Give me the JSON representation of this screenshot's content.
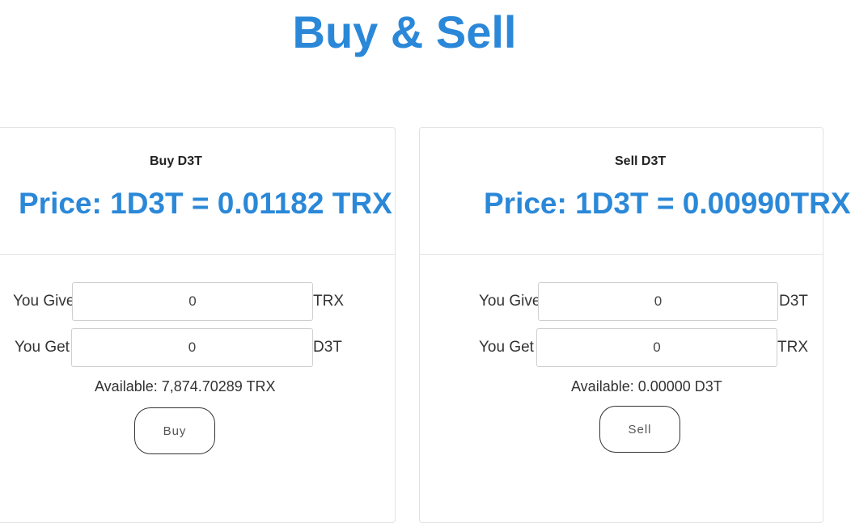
{
  "page": {
    "title": "Buy & Sell"
  },
  "buy_panel": {
    "subtitle": "Buy D3T",
    "price": "Price: 1D3T = 0.01182 TRX",
    "give_label": "You Give",
    "give_value": "0",
    "give_unit": "TRX",
    "get_label": "You Get",
    "get_value": "0",
    "get_unit": "D3T",
    "available": "Available: 7,874.70289 TRX",
    "button_label": "Buy"
  },
  "sell_panel": {
    "subtitle": "Sell D3T",
    "price": "Price: 1D3T = 0.00990TRX",
    "give_label": "You Give",
    "give_value": "0",
    "give_unit": "D3T",
    "get_label": "You Get",
    "get_value": "0",
    "get_unit": "TRX",
    "available": "Available: 0.00000 D3T",
    "button_label": "Sell"
  },
  "colors": {
    "accent": "#2b88d8",
    "text": "#333333",
    "border": "#e2e2e2"
  }
}
